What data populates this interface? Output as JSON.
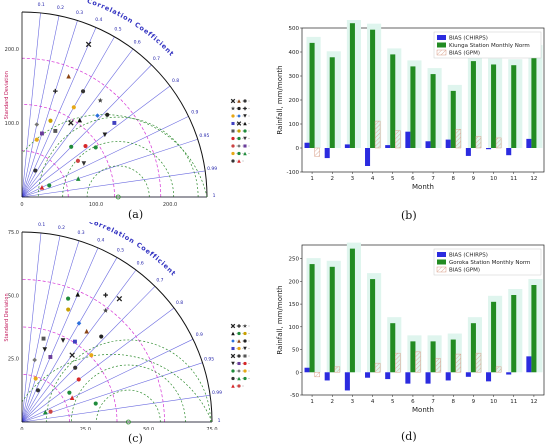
{
  "captions": {
    "a": "(a)",
    "b": "(b)",
    "c": "(c)",
    "d": "(d)"
  },
  "taylor": {
    "title": "Correlation Coefficient",
    "ylabel": "Standard Deviation",
    "corr_ticks": [
      "0.1",
      "0.2",
      "0.3",
      "0.4",
      "0.5",
      "0.6",
      "0.7",
      "0.8",
      "0.9",
      "0.95",
      "0.99",
      "1"
    ]
  },
  "chart_data": [
    {
      "panel": "a",
      "type": "scatter",
      "subtype": "taylor-diagram",
      "title": "Correlation Coefficient",
      "ylabel": "Standard Deviation",
      "std_max": 250,
      "x_ticks": [
        "0",
        "100.0",
        "200.0"
      ],
      "y_ticks": [
        "100.0",
        "200.0"
      ],
      "reference_std": 130,
      "corr_ticks": [
        0.1,
        0.2,
        0.3,
        0.4,
        0.5,
        0.6,
        0.7,
        0.8,
        0.9,
        0.95,
        0.99,
        1
      ],
      "points": [
        {
          "corr": 0.4,
          "std": 225,
          "marker": "x",
          "color": "#222222"
        },
        {
          "corr": 0.36,
          "std": 175,
          "marker": "triangle",
          "color": "#8b4513"
        },
        {
          "corr": 0.5,
          "std": 165,
          "marker": "circle",
          "color": "#333333"
        },
        {
          "corr": 0.63,
          "std": 168,
          "marker": "star",
          "color": "#444444"
        },
        {
          "corr": 0.72,
          "std": 160,
          "marker": "circle",
          "color": "#222222"
        },
        {
          "corr": 0.3,
          "std": 150,
          "marker": "plus",
          "color": "#222222"
        },
        {
          "corr": 0.5,
          "std": 140,
          "marker": "circle",
          "color": "#e6a817"
        },
        {
          "corr": 0.68,
          "std": 150,
          "marker": "diamond",
          "color": "#2a6fdb"
        },
        {
          "corr": 0.8,
          "std": 140,
          "marker": "triangle-down",
          "color": "#222222"
        },
        {
          "corr": 0.78,
          "std": 160,
          "marker": "square",
          "color": "#4040c0"
        },
        {
          "corr": 0.55,
          "std": 120,
          "marker": "x",
          "color": "#222222"
        },
        {
          "corr": 0.6,
          "std": 130,
          "marker": "triangle",
          "color": "#111111"
        },
        {
          "corr": 0.45,
          "std": 100,
          "marker": "square",
          "color": "#555555"
        },
        {
          "corr": 0.35,
          "std": 110,
          "marker": "circle",
          "color": "#c8a000"
        },
        {
          "corr": 0.7,
          "std": 95,
          "marker": "circle",
          "color": "#1f8b3b"
        },
        {
          "corr": 0.78,
          "std": 110,
          "marker": "circle",
          "color": "#d62728"
        },
        {
          "corr": 0.83,
          "std": 120,
          "marker": "circle",
          "color": "#1f8b3b"
        },
        {
          "corr": 0.88,
          "std": 95,
          "marker": "triangle-down",
          "color": "#333333"
        },
        {
          "corr": 0.84,
          "std": 90,
          "marker": "circle",
          "color": "#cc4444"
        },
        {
          "corr": 0.2,
          "std": 100,
          "marker": "diamond",
          "color": "#777777"
        },
        {
          "corr": 0.3,
          "std": 90,
          "marker": "square",
          "color": "#6a3d9a"
        },
        {
          "corr": 0.25,
          "std": 80,
          "marker": "circle",
          "color": "#e6a817"
        },
        {
          "corr": 0.92,
          "std": 40,
          "marker": "circle",
          "color": "#1f8b3b"
        },
        {
          "corr": 0.95,
          "std": 80,
          "marker": "triangle",
          "color": "#1f8b3b"
        },
        {
          "corr": 0.45,
          "std": 40,
          "marker": "circle",
          "color": "#333333"
        },
        {
          "corr": 0.9,
          "std": 30,
          "marker": "triangle",
          "color": "#d62728"
        }
      ]
    },
    {
      "panel": "b",
      "type": "bar",
      "xlabel": "Month",
      "ylabel": "Rainfall, mm/month",
      "ylim": [
        -100,
        500
      ],
      "yticks": [
        -100,
        0,
        100,
        200,
        300,
        400,
        500
      ],
      "categories": [
        "1",
        "2",
        "3",
        "4",
        "5",
        "6",
        "7",
        "8",
        "9",
        "10",
        "11",
        "12"
      ],
      "legend_position": "top-right",
      "series": [
        {
          "name": "BIAS (CHIRPS)",
          "color": "#2b2bdf",
          "values": [
            22,
            -42,
            15,
            -75,
            12,
            68,
            28,
            35,
            -33,
            -5,
            -30,
            38
          ]
        },
        {
          "name": "Kiunga Station Monthly Norm",
          "color": "#228b22",
          "values": [
            438,
            378,
            520,
            493,
            390,
            340,
            308,
            238,
            362,
            348,
            345,
            404
          ]
        },
        {
          "name": "BIAS (GPM)",
          "color": "#d9a08a",
          "hatch": true,
          "values": [
            -35,
            0,
            0,
            112,
            72,
            0,
            0,
            78,
            48,
            42,
            0,
            0
          ]
        }
      ],
      "shadow_color": "#dff5ee"
    },
    {
      "panel": "c",
      "type": "scatter",
      "subtype": "taylor-diagram",
      "title": "Correlation Coefficient",
      "ylabel": "Standard Deviation",
      "std_max": 75,
      "x_ticks": [
        "0",
        "25.0",
        "50.0",
        "75.0"
      ],
      "y_ticks": [
        "25.0",
        "50.0",
        "75.0"
      ],
      "reference_std": 42,
      "corr_ticks": [
        0.1,
        0.2,
        0.3,
        0.4,
        0.5,
        0.6,
        0.7,
        0.8,
        0.9,
        0.95,
        0.99,
        1
      ],
      "points": [
        {
          "corr": 0.62,
          "std": 62,
          "marker": "x",
          "color": "#222222"
        },
        {
          "corr": 0.55,
          "std": 60,
          "marker": "plus",
          "color": "#222222"
        },
        {
          "corr": 0.6,
          "std": 55,
          "marker": "star",
          "color": "#444444"
        },
        {
          "corr": 0.4,
          "std": 55,
          "marker": "triangle",
          "color": "#111111"
        },
        {
          "corr": 0.35,
          "std": 52,
          "marker": "circle",
          "color": "#1f8b3b"
        },
        {
          "corr": 0.38,
          "std": 48,
          "marker": "circle",
          "color": "#c8a000"
        },
        {
          "corr": 0.5,
          "std": 45,
          "marker": "diamond",
          "color": "#2a6fdb"
        },
        {
          "corr": 0.58,
          "std": 44,
          "marker": "triangle",
          "color": "#8b4513"
        },
        {
          "corr": 0.68,
          "std": 46,
          "marker": "circle",
          "color": "#222222"
        },
        {
          "corr": 0.55,
          "std": 38,
          "marker": "square",
          "color": "#4040c0"
        },
        {
          "corr": 0.72,
          "std": 38,
          "marker": "circle",
          "color": "#e6a817"
        },
        {
          "corr": 0.45,
          "std": 36,
          "marker": "triangle-down",
          "color": "#222222"
        },
        {
          "corr": 0.6,
          "std": 33,
          "marker": "x",
          "color": "#222222"
        },
        {
          "corr": 0.7,
          "std": 30,
          "marker": "circle",
          "color": "#333333"
        },
        {
          "corr": 0.25,
          "std": 34,
          "marker": "square",
          "color": "#555555"
        },
        {
          "corr": 0.3,
          "std": 30,
          "marker": "triangle-down",
          "color": "#222222"
        },
        {
          "corr": 0.4,
          "std": 28,
          "marker": "square",
          "color": "#6a3d9a"
        },
        {
          "corr": 0.8,
          "std": 28,
          "marker": "circle",
          "color": "#d62728"
        },
        {
          "corr": 0.85,
          "std": 22,
          "marker": "circle",
          "color": "#1f8b3b"
        },
        {
          "corr": 0.2,
          "std": 25,
          "marker": "diamond",
          "color": "#777777"
        },
        {
          "corr": 0.3,
          "std": 18,
          "marker": "circle",
          "color": "#e6a817"
        },
        {
          "corr": 0.45,
          "std": 14,
          "marker": "circle",
          "color": "#333333"
        },
        {
          "corr": 0.92,
          "std": 10,
          "marker": "triangle",
          "color": "#1f8b3b"
        },
        {
          "corr": 0.97,
          "std": 30,
          "marker": "circle",
          "color": "#1f8b3b"
        },
        {
          "corr": 0.9,
          "std": 22,
          "marker": "triangle",
          "color": "#d62728"
        },
        {
          "corr": 0.94,
          "std": 12,
          "marker": "circle",
          "color": "#cc4444"
        }
      ]
    },
    {
      "panel": "d",
      "type": "bar",
      "xlabel": "Month",
      "ylabel": "Rainfall, mm/month",
      "ylim": [
        -50,
        280
      ],
      "yticks": [
        -50,
        0,
        50,
        100,
        150,
        200,
        250
      ],
      "categories": [
        "1",
        "2",
        "3",
        "4",
        "5",
        "6",
        "7",
        "8",
        "9",
        "10",
        "11",
        "12"
      ],
      "legend_position": "top-right",
      "series": [
        {
          "name": "BIAS (CHIRPS)",
          "color": "#2b2bdf",
          "values": [
            10,
            -18,
            -40,
            -12,
            -15,
            -25,
            -25,
            -18,
            -10,
            -20,
            -5,
            35
          ]
        },
        {
          "name": "Goroka Station Monthly Norm",
          "color": "#228b22",
          "values": [
            238,
            232,
            272,
            205,
            108,
            68,
            68,
            72,
            108,
            155,
            170,
            192
          ]
        },
        {
          "name": "BIAS (GPM)",
          "color": "#d9a08a",
          "hatch": true,
          "values": [
            -10,
            12,
            0,
            20,
            42,
            45,
            30,
            40,
            42,
            12,
            0,
            0
          ]
        }
      ],
      "shadow_color": "#dff5ee"
    }
  ]
}
